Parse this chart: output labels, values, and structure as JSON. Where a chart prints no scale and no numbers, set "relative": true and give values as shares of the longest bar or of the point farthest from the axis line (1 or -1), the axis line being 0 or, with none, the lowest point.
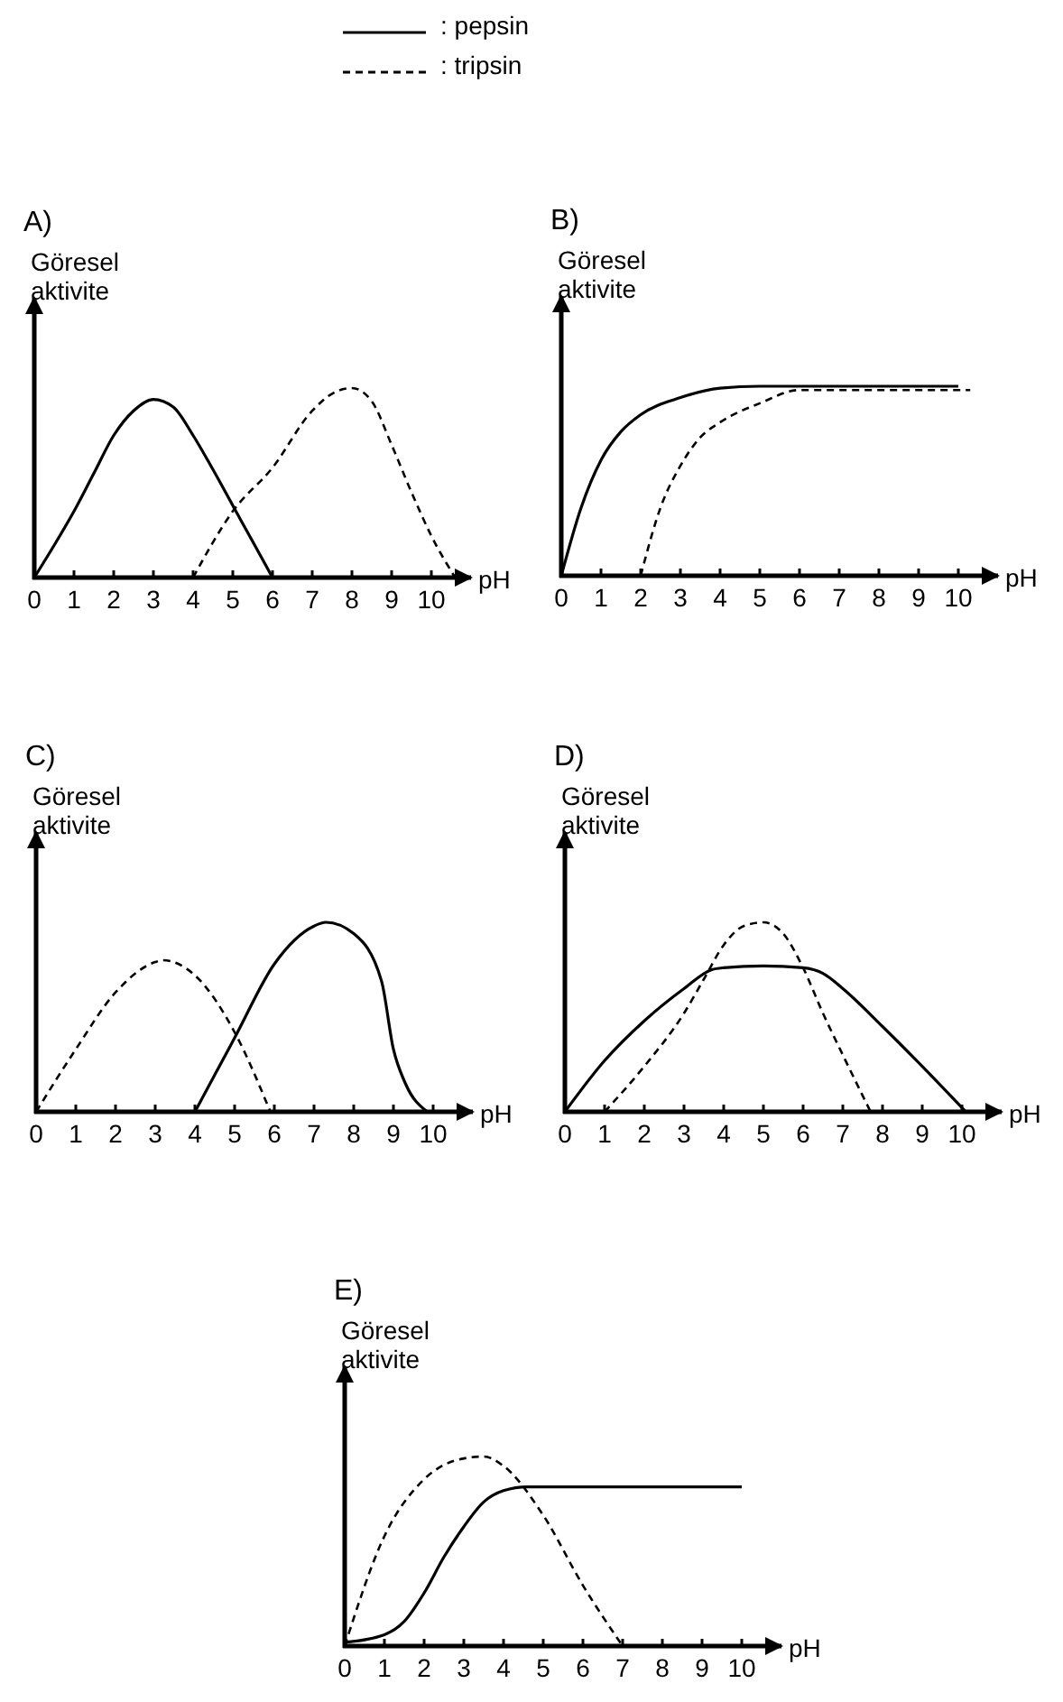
{
  "chart_data": [
    {
      "type": "line",
      "title": "A)",
      "ylabel": "Göresel aktivite",
      "xlabel": "pH",
      "relative": true,
      "xlim": [
        0,
        11
      ],
      "xticks": [
        0,
        1,
        2,
        3,
        4,
        5,
        6,
        7,
        8,
        9,
        10
      ],
      "legend": "top",
      "series": [
        {
          "name": ": pepsin",
          "color": "#000000",
          "line_style": "solid",
          "x": [
            0,
            0.5,
            1,
            1.5,
            2,
            2.5,
            3,
            3.5,
            4,
            4.5,
            5,
            5.5,
            6
          ],
          "values": [
            0,
            0.17,
            0.35,
            0.55,
            0.75,
            0.88,
            0.94,
            0.9,
            0.75,
            0.57,
            0.38,
            0.19,
            0
          ]
        },
        {
          "name": ": tripsin",
          "color": "#000000",
          "line_style": "dashed",
          "x": [
            4,
            5,
            6,
            7,
            7.5,
            8,
            8.5,
            9,
            9.5,
            10,
            10.6
          ],
          "values": [
            0,
            0.35,
            0.58,
            0.88,
            0.97,
            1,
            0.93,
            0.7,
            0.45,
            0.22,
            0
          ]
        }
      ]
    },
    {
      "type": "line",
      "title": "B)",
      "ylabel": "Göresel aktivite",
      "xlabel": "pH",
      "relative": true,
      "xlim": [
        0,
        11
      ],
      "xticks": [
        0,
        1,
        2,
        3,
        4,
        5,
        6,
        7,
        8,
        9,
        10
      ],
      "series": [
        {
          "color": "#000000",
          "line_style": "solid",
          "x": [
            0,
            0.5,
            1,
            1.5,
            2,
            3,
            4,
            5,
            10
          ],
          "values": [
            0,
            0.36,
            0.61,
            0.76,
            0.85,
            0.94,
            0.99,
            1,
            1
          ]
        },
        {
          "color": "#000000",
          "line_style": "dashed",
          "x": [
            2,
            2.5,
            3,
            3.5,
            4,
            5,
            6,
            10.3
          ],
          "values": [
            0,
            0.36,
            0.58,
            0.73,
            0.81,
            0.91,
            0.98,
            0.98
          ]
        }
      ]
    },
    {
      "type": "line",
      "title": "C)",
      "ylabel": "Göresel aktivite",
      "xlabel": "pH",
      "relative": true,
      "xlim": [
        0,
        11
      ],
      "xticks": [
        0,
        1,
        2,
        3,
        4,
        5,
        6,
        7,
        8,
        9,
        10
      ],
      "series": [
        {
          "color": "#000000",
          "line_style": "solid",
          "x": [
            4,
            5,
            6,
            7,
            7.3,
            8,
            8.7,
            9,
            9.3,
            9.85
          ],
          "values": [
            0,
            0.39,
            0.78,
            0.98,
            1,
            0.94,
            0.69,
            0.33,
            0.15,
            0
          ]
        },
        {
          "color": "#000000",
          "line_style": "dashed",
          "x": [
            0,
            1,
            2,
            3,
            3.2,
            4,
            5,
            5.9
          ],
          "values": [
            0,
            0.33,
            0.63,
            0.79,
            0.8,
            0.72,
            0.42,
            0
          ]
        }
      ]
    },
    {
      "type": "line",
      "title": "D)",
      "ylabel": "Göresel aktivite",
      "xlabel": "pH",
      "relative": true,
      "xlim": [
        0,
        11
      ],
      "xticks": [
        0,
        1,
        2,
        3,
        4,
        5,
        6,
        7,
        8,
        9,
        10
      ],
      "series": [
        {
          "color": "#000000",
          "line_style": "solid",
          "x": [
            0,
            1,
            2,
            3,
            3.7,
            4,
            5,
            6,
            6.5,
            7,
            8,
            9,
            10.1
          ],
          "values": [
            0,
            0.27,
            0.48,
            0.65,
            0.75,
            0.76,
            0.77,
            0.76,
            0.73,
            0.65,
            0.45,
            0.24,
            0
          ]
        },
        {
          "color": "#000000",
          "line_style": "dashed",
          "x": [
            1,
            2,
            3,
            3.5,
            4,
            4.5,
            5,
            5.5,
            6,
            6.5,
            7,
            7.7
          ],
          "values": [
            0,
            0.24,
            0.52,
            0.7,
            0.88,
            0.98,
            1,
            0.94,
            0.76,
            0.52,
            0.3,
            0
          ]
        }
      ]
    },
    {
      "type": "line",
      "title": "E)",
      "ylabel": "Göresel aktivite",
      "xlabel": "pH",
      "relative": true,
      "xlim": [
        0,
        11
      ],
      "xticks": [
        0,
        1,
        2,
        3,
        4,
        5,
        6,
        7,
        8,
        9,
        10
      ],
      "series": [
        {
          "color": "#000000",
          "line_style": "solid",
          "x": [
            0,
            1,
            1.5,
            2,
            2.5,
            3,
            3.5,
            4,
            4.6,
            10
          ],
          "values": [
            0.02,
            0.06,
            0.13,
            0.28,
            0.47,
            0.63,
            0.76,
            0.82,
            0.84,
            0.84
          ]
        },
        {
          "color": "#000000",
          "line_style": "dashed",
          "x": [
            0,
            1,
            2,
            3,
            3.5,
            4,
            5,
            6,
            7
          ],
          "values": [
            0,
            0.58,
            0.88,
            0.99,
            1,
            0.95,
            0.69,
            0.32,
            0
          ]
        }
      ]
    }
  ]
}
